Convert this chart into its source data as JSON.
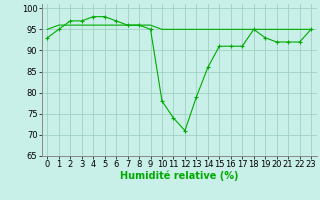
{
  "x": [
    0,
    1,
    2,
    3,
    4,
    5,
    6,
    7,
    8,
    9,
    10,
    11,
    12,
    13,
    14,
    15,
    16,
    17,
    18,
    19,
    20,
    21,
    22,
    23
  ],
  "y_main": [
    93,
    95,
    97,
    97,
    98,
    98,
    97,
    96,
    96,
    95,
    78,
    74,
    71,
    79,
    86,
    91,
    91,
    91,
    95,
    93,
    92,
    92,
    92,
    95
  ],
  "y_flat": [
    95,
    96,
    96,
    96,
    96,
    96,
    96,
    96,
    96,
    96,
    95,
    95,
    95,
    95,
    95,
    95,
    95,
    95,
    95,
    95,
    95,
    95,
    95,
    95
  ],
  "line_color": "#00aa00",
  "bg_color": "#c8f0e8",
  "grid_color": "#99ccbb",
  "xlabel": "Humidité relative (%)",
  "xlim": [
    -0.5,
    23.5
  ],
  "ylim": [
    65,
    101
  ],
  "yticks": [
    65,
    70,
    75,
    80,
    85,
    90,
    95,
    100
  ],
  "xticks": [
    0,
    1,
    2,
    3,
    4,
    5,
    6,
    7,
    8,
    9,
    10,
    11,
    12,
    13,
    14,
    15,
    16,
    17,
    18,
    19,
    20,
    21,
    22,
    23
  ],
  "xlabel_fontsize": 7,
  "tick_fontsize": 6,
  "marker_size": 3,
  "linewidth": 0.8
}
